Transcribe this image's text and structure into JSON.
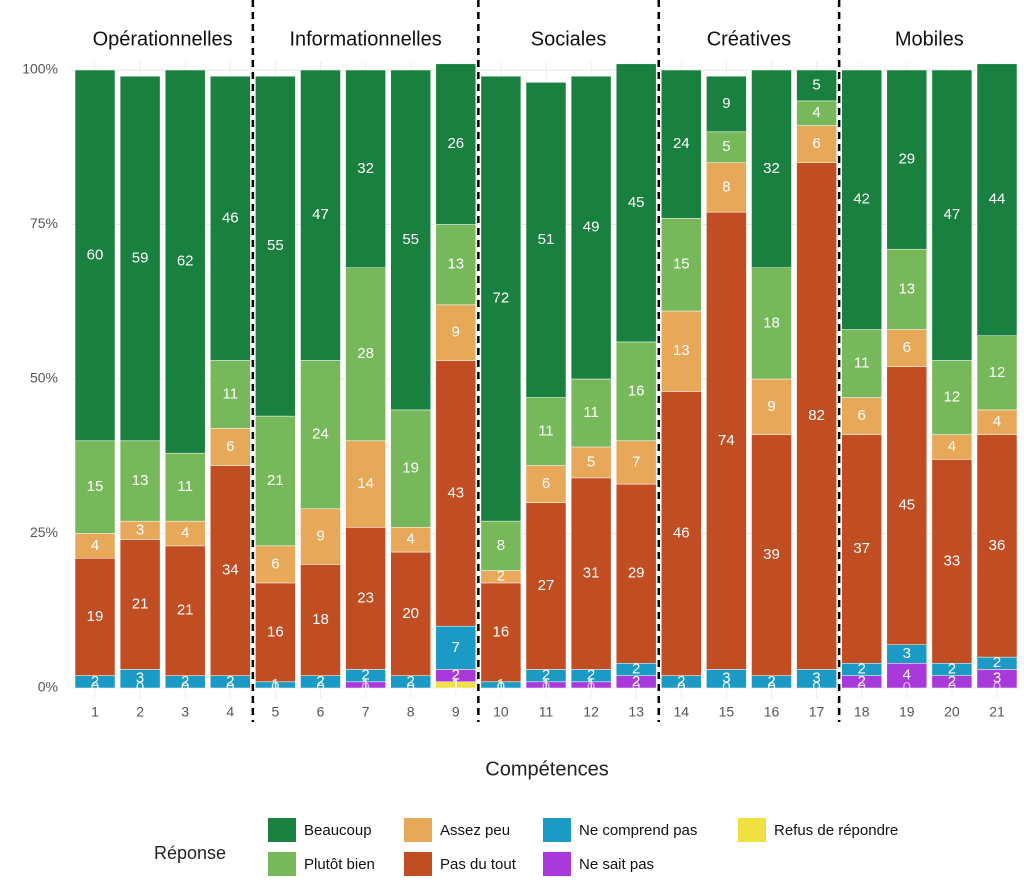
{
  "chart_data": {
    "type": "stacked_bar",
    "x_label": "Compétences",
    "legend_title": "Réponse",
    "groups": [
      {
        "name": "Opérationnelles",
        "categories": [
          "1",
          "2",
          "3",
          "4"
        ]
      },
      {
        "name": "Informationnelles",
        "categories": [
          "5",
          "6",
          "7",
          "8",
          "9"
        ]
      },
      {
        "name": "Sociales",
        "categories": [
          "10",
          "11",
          "12",
          "13"
        ]
      },
      {
        "name": "Créatives",
        "categories": [
          "14",
          "15",
          "16",
          "17"
        ]
      },
      {
        "name": "Mobiles",
        "categories": [
          "18",
          "19",
          "20",
          "21"
        ]
      }
    ],
    "ylim": [
      0,
      100
    ],
    "yticks": [
      {
        "value": 0,
        "label": "0%"
      },
      {
        "value": 25,
        "label": "25%"
      },
      {
        "value": 50,
        "label": "50%"
      },
      {
        "value": 75,
        "label": "75%"
      },
      {
        "value": 100,
        "label": "100%"
      }
    ],
    "grid": true,
    "legend_position": "bottom",
    "series": [
      {
        "name": "Beaucoup",
        "color": "#1a8040",
        "values": [
          60,
          59,
          62,
          46,
          55,
          47,
          32,
          55,
          26,
          72,
          51,
          49,
          45,
          24,
          9,
          32,
          5,
          42,
          29,
          47,
          44
        ]
      },
      {
        "name": "Plutôt bien",
        "color": "#77b95a",
        "values": [
          15,
          13,
          11,
          11,
          21,
          24,
          28,
          19,
          13,
          8,
          11,
          11,
          16,
          15,
          5,
          18,
          4,
          11,
          13,
          12,
          12
        ]
      },
      {
        "name": "Assez peu",
        "color": "#e8a85a",
        "values": [
          4,
          3,
          4,
          6,
          6,
          9,
          14,
          4,
          9,
          2,
          6,
          5,
          7,
          13,
          8,
          9,
          6,
          6,
          6,
          4,
          4
        ]
      },
      {
        "name": "Pas du tout",
        "color": "#c14d22",
        "values": [
          19,
          21,
          21,
          34,
          16,
          18,
          23,
          20,
          43,
          16,
          27,
          31,
          29,
          46,
          74,
          39,
          82,
          37,
          45,
          33,
          36
        ]
      },
      {
        "name": "Ne comprend pas",
        "color": "#1a9ac4",
        "values": [
          2,
          3,
          2,
          2,
          1,
          2,
          2,
          2,
          7,
          1,
          2,
          2,
          2,
          2,
          3,
          2,
          3,
          2,
          3,
          2,
          2
        ]
      },
      {
        "name": "Ne sait pas",
        "color": "#a83adb",
        "values": [
          0,
          0,
          0,
          0,
          0,
          0,
          1,
          0,
          2,
          0,
          1,
          1,
          2,
          0,
          0,
          0,
          0,
          2,
          4,
          2,
          3
        ]
      },
      {
        "name": "Refus de répondre",
        "color": "#f0e040",
        "values": [
          0,
          0,
          0,
          0,
          0,
          0,
          0,
          0,
          1,
          0,
          0,
          0,
          0,
          0,
          0,
          0,
          0,
          0,
          0,
          0,
          0
        ]
      }
    ]
  }
}
